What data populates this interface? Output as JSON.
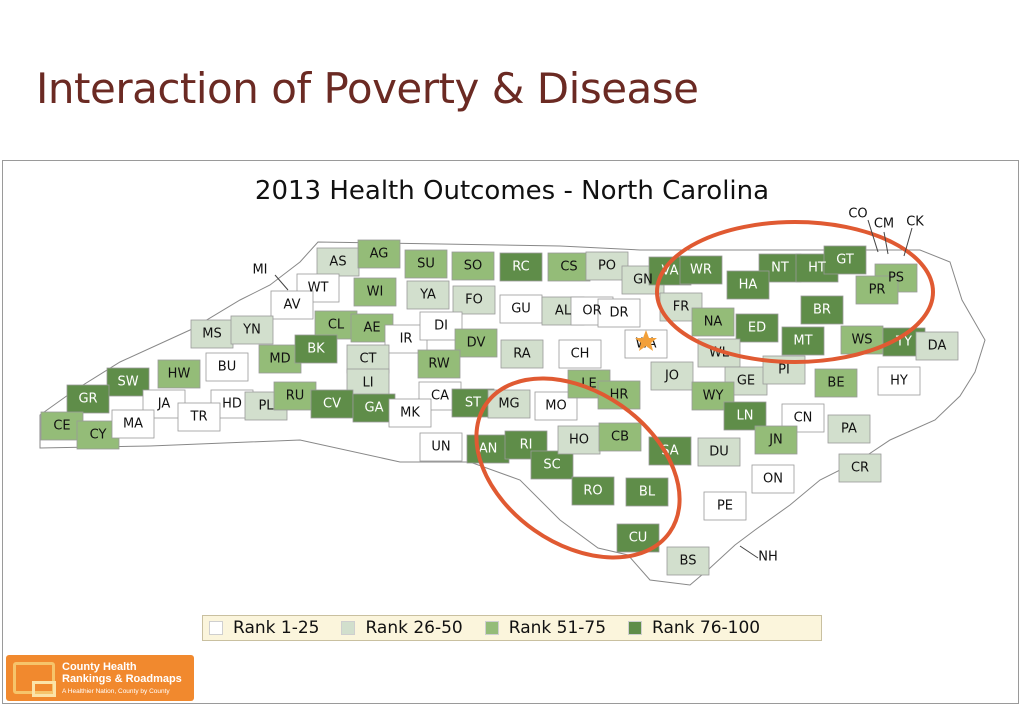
{
  "slide_title": "Interaction of Poverty & Disease",
  "map_title": "2013 Health Outcomes - North Carolina",
  "colors": {
    "rank_1_25": "#ffffff",
    "rank_26_50": "#d2dfcd",
    "rank_51_75": "#94bc78",
    "rank_76_100": "#5f8d49",
    "highlight_ring": "#e05a32",
    "border": "#999999"
  },
  "legend": [
    {
      "label": "Rank 1-25",
      "color": "#ffffff"
    },
    {
      "label": "Rank 26-50",
      "color": "#d2dfcd"
    },
    {
      "label": "Rank 51-75",
      "color": "#94bc78"
    },
    {
      "label": "Rank 76-100",
      "color": "#5f8d49"
    }
  ],
  "counties": [
    {
      "abbr": "AS",
      "rank": "26-50"
    },
    {
      "abbr": "AG",
      "rank": "51-75"
    },
    {
      "abbr": "SU",
      "rank": "51-75"
    },
    {
      "abbr": "SO",
      "rank": "51-75"
    },
    {
      "abbr": "RC",
      "rank": "76-100"
    },
    {
      "abbr": "CS",
      "rank": "51-75"
    },
    {
      "abbr": "PO",
      "rank": "26-50"
    },
    {
      "abbr": "GN",
      "rank": "26-50"
    },
    {
      "abbr": "VA",
      "rank": "76-100"
    },
    {
      "abbr": "WR",
      "rank": "76-100"
    },
    {
      "abbr": "NT",
      "rank": "76-100"
    },
    {
      "abbr": "HT",
      "rank": "76-100"
    },
    {
      "abbr": "GT",
      "rank": "76-100"
    },
    {
      "abbr": "CO",
      "rank": "26-50"
    },
    {
      "abbr": "CM",
      "rank": "26-50"
    },
    {
      "abbr": "CK",
      "rank": "26-50"
    },
    {
      "abbr": "PS",
      "rank": "51-75"
    },
    {
      "abbr": "PR",
      "rank": "51-75"
    },
    {
      "abbr": "HA",
      "rank": "76-100"
    },
    {
      "abbr": "BR",
      "rank": "76-100"
    },
    {
      "abbr": "FR",
      "rank": "26-50"
    },
    {
      "abbr": "NA",
      "rank": "51-75"
    },
    {
      "abbr": "ED",
      "rank": "76-100"
    },
    {
      "abbr": "MT",
      "rank": "76-100"
    },
    {
      "abbr": "WS",
      "rank": "51-75"
    },
    {
      "abbr": "TY",
      "rank": "76-100"
    },
    {
      "abbr": "DA",
      "rank": "26-50"
    },
    {
      "abbr": "MI",
      "rank": "1-25"
    },
    {
      "abbr": "WT",
      "rank": "1-25"
    },
    {
      "abbr": "AV",
      "rank": "1-25"
    },
    {
      "abbr": "WI",
      "rank": "51-75"
    },
    {
      "abbr": "YA",
      "rank": "26-50"
    },
    {
      "abbr": "FO",
      "rank": "26-50"
    },
    {
      "abbr": "GU",
      "rank": "1-25"
    },
    {
      "abbr": "AL",
      "rank": "26-50"
    },
    {
      "abbr": "OR",
      "rank": "1-25"
    },
    {
      "abbr": "DR",
      "rank": "1-25"
    },
    {
      "abbr": "MS",
      "rank": "26-50"
    },
    {
      "abbr": "YN",
      "rank": "26-50"
    },
    {
      "abbr": "CL",
      "rank": "51-75"
    },
    {
      "abbr": "AE",
      "rank": "51-75"
    },
    {
      "abbr": "IR",
      "rank": "1-25"
    },
    {
      "abbr": "DI",
      "rank": "1-25"
    },
    {
      "abbr": "DV",
      "rank": "51-75"
    },
    {
      "abbr": "RA",
      "rank": "26-50"
    },
    {
      "abbr": "CH",
      "rank": "1-25"
    },
    {
      "abbr": "WA",
      "rank": "1-25"
    },
    {
      "abbr": "BU",
      "rank": "1-25"
    },
    {
      "abbr": "MD",
      "rank": "51-75"
    },
    {
      "abbr": "BK",
      "rank": "76-100"
    },
    {
      "abbr": "CT",
      "rank": "26-50"
    },
    {
      "abbr": "RW",
      "rank": "51-75"
    },
    {
      "abbr": "WL",
      "rank": "26-50"
    },
    {
      "abbr": "SW",
      "rank": "76-100"
    },
    {
      "abbr": "HW",
      "rank": "51-75"
    },
    {
      "abbr": "LI",
      "rank": "26-50"
    },
    {
      "abbr": "JO",
      "rank": "26-50"
    },
    {
      "abbr": "GE",
      "rank": "26-50"
    },
    {
      "abbr": "PI",
      "rank": "26-50"
    },
    {
      "abbr": "BE",
      "rank": "51-75"
    },
    {
      "abbr": "HY",
      "rank": "1-25"
    },
    {
      "abbr": "GR",
      "rank": "76-100"
    },
    {
      "abbr": "JA",
      "rank": "1-25"
    },
    {
      "abbr": "HD",
      "rank": "1-25"
    },
    {
      "abbr": "PL",
      "rank": "26-50"
    },
    {
      "abbr": "RU",
      "rank": "51-75"
    },
    {
      "abbr": "CV",
      "rank": "76-100"
    },
    {
      "abbr": "GA",
      "rank": "76-100"
    },
    {
      "abbr": "CA",
      "rank": "1-25"
    },
    {
      "abbr": "ST",
      "rank": "76-100"
    },
    {
      "abbr": "MG",
      "rank": "26-50"
    },
    {
      "abbr": "MO",
      "rank": "1-25"
    },
    {
      "abbr": "LE",
      "rank": "51-75"
    },
    {
      "abbr": "HR",
      "rank": "51-75"
    },
    {
      "abbr": "WY",
      "rank": "51-75"
    },
    {
      "abbr": "LN",
      "rank": "76-100"
    },
    {
      "abbr": "CN",
      "rank": "1-25"
    },
    {
      "abbr": "PA",
      "rank": "26-50"
    },
    {
      "abbr": "CE",
      "rank": "51-75"
    },
    {
      "abbr": "CY",
      "rank": "51-75"
    },
    {
      "abbr": "MA",
      "rank": "1-25"
    },
    {
      "abbr": "TR",
      "rank": "1-25"
    },
    {
      "abbr": "MK",
      "rank": "1-25"
    },
    {
      "abbr": "UN",
      "rank": "1-25"
    },
    {
      "abbr": "AN",
      "rank": "76-100"
    },
    {
      "abbr": "RI",
      "rank": "76-100"
    },
    {
      "abbr": "SC",
      "rank": "76-100"
    },
    {
      "abbr": "HO",
      "rank": "26-50"
    },
    {
      "abbr": "CB",
      "rank": "51-75"
    },
    {
      "abbr": "SA",
      "rank": "76-100"
    },
    {
      "abbr": "DU",
      "rank": "26-50"
    },
    {
      "abbr": "JN",
      "rank": "51-75"
    },
    {
      "abbr": "CR",
      "rank": "26-50"
    },
    {
      "abbr": "ON",
      "rank": "1-25"
    },
    {
      "abbr": "RO",
      "rank": "76-100"
    },
    {
      "abbr": "BL",
      "rank": "76-100"
    },
    {
      "abbr": "PE",
      "rank": "1-25"
    },
    {
      "abbr": "CU",
      "rank": "76-100"
    },
    {
      "abbr": "BS",
      "rank": "26-50"
    },
    {
      "abbr": "NH",
      "rank": "1-25"
    }
  ],
  "logo": {
    "name": "County Health\nRankings & Roadmaps",
    "tagline": "A Healthier Nation, County by County"
  }
}
